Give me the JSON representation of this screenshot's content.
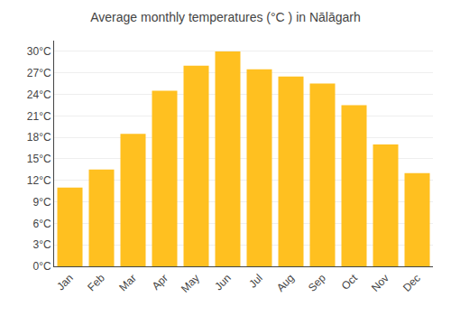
{
  "chart_data": {
    "type": "bar",
    "title": "Average monthly temperatures (°C ) in Nālāgarh",
    "categories": [
      "Jan",
      "Feb",
      "Mar",
      "Apr",
      "May",
      "Jun",
      "Jul",
      "Aug",
      "Sep",
      "Oct",
      "Nov",
      "Dec"
    ],
    "values": [
      11,
      13.5,
      18.5,
      24.5,
      28,
      30,
      27.5,
      26.5,
      25.5,
      22.5,
      17,
      13
    ],
    "color": "#FFC020",
    "ylim": [
      0,
      31.5
    ],
    "yticks": [
      {
        "value": 0,
        "label": "0°C"
      },
      {
        "value": 3,
        "label": "3°C"
      },
      {
        "value": 6,
        "label": "6°C"
      },
      {
        "value": 9,
        "label": "9°C"
      },
      {
        "value": 12,
        "label": "12°C"
      },
      {
        "value": 15,
        "label": "15°C"
      },
      {
        "value": 18,
        "label": "18°C"
      },
      {
        "value": 21,
        "label": "21°C"
      },
      {
        "value": 24,
        "label": "24°C"
      },
      {
        "value": 27,
        "label": "27°C"
      },
      {
        "value": 30,
        "label": "30°C"
      }
    ],
    "grid": true
  }
}
